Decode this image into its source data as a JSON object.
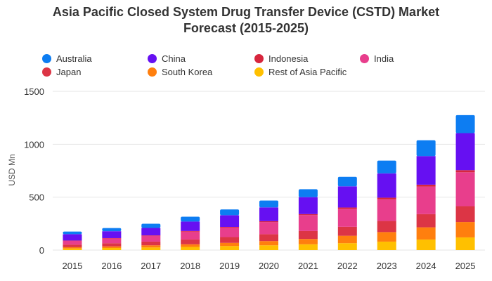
{
  "chart_data": {
    "type": "bar",
    "stacked": true,
    "title_line1": "Asia Pacific Closed System Drug Transfer Device (CSTD) Market",
    "title_line2": "Forecast (2015-2025)",
    "xlabel": "",
    "ylabel": "USD Mn",
    "ylim": [
      0,
      1500
    ],
    "yticks": [
      "0",
      "500",
      "1000",
      "1500"
    ],
    "grid": "horizontal",
    "legend_position": "top",
    "categories": [
      "2015",
      "2016",
      "2017",
      "2018",
      "2019",
      "2020",
      "2021",
      "2022",
      "2023",
      "2024",
      "2025"
    ],
    "series": [
      {
        "name": "Rest of Asia Pacific",
        "color": "#FFC000",
        "values": [
          15,
          20,
          25,
          30,
          38,
          45,
          55,
          65,
          80,
          100,
          120
        ]
      },
      {
        "name": "South Korea",
        "color": "#FF7F0E",
        "values": [
          12,
          15,
          20,
          25,
          30,
          40,
          50,
          70,
          90,
          115,
          145
        ]
      },
      {
        "name": "Japan",
        "color": "#DC3545",
        "values": [
          25,
          30,
          35,
          45,
          55,
          65,
          75,
          85,
          105,
          125,
          150
        ]
      },
      {
        "name": "India",
        "color": "#E83E8C",
        "values": [
          35,
          45,
          55,
          75,
          90,
          115,
          150,
          170,
          205,
          260,
          320
        ]
      },
      {
        "name": "Indonesia",
        "color": "#D7263D",
        "values": [
          3,
          3,
          4,
          5,
          6,
          8,
          10,
          12,
          15,
          18,
          20
        ]
      },
      {
        "name": "China",
        "color": "#6610F2",
        "values": [
          60,
          65,
          70,
          90,
          110,
          130,
          160,
          200,
          230,
          270,
          350
        ]
      },
      {
        "name": "Australia",
        "color": "#0D7DF2",
        "values": [
          25,
          30,
          40,
          45,
          55,
          65,
          75,
          90,
          120,
          150,
          170
        ]
      }
    ],
    "legend": [
      {
        "name": "Australia",
        "color": "#0D7DF2"
      },
      {
        "name": "China",
        "color": "#6610F2"
      },
      {
        "name": "Indonesia",
        "color": "#D7263D"
      },
      {
        "name": "India",
        "color": "#E83E8C"
      },
      {
        "name": "Japan",
        "color": "#DC3545"
      },
      {
        "name": "South Korea",
        "color": "#FF7F0E"
      },
      {
        "name": "Rest of Asia Pacific",
        "color": "#FFC000"
      }
    ]
  }
}
